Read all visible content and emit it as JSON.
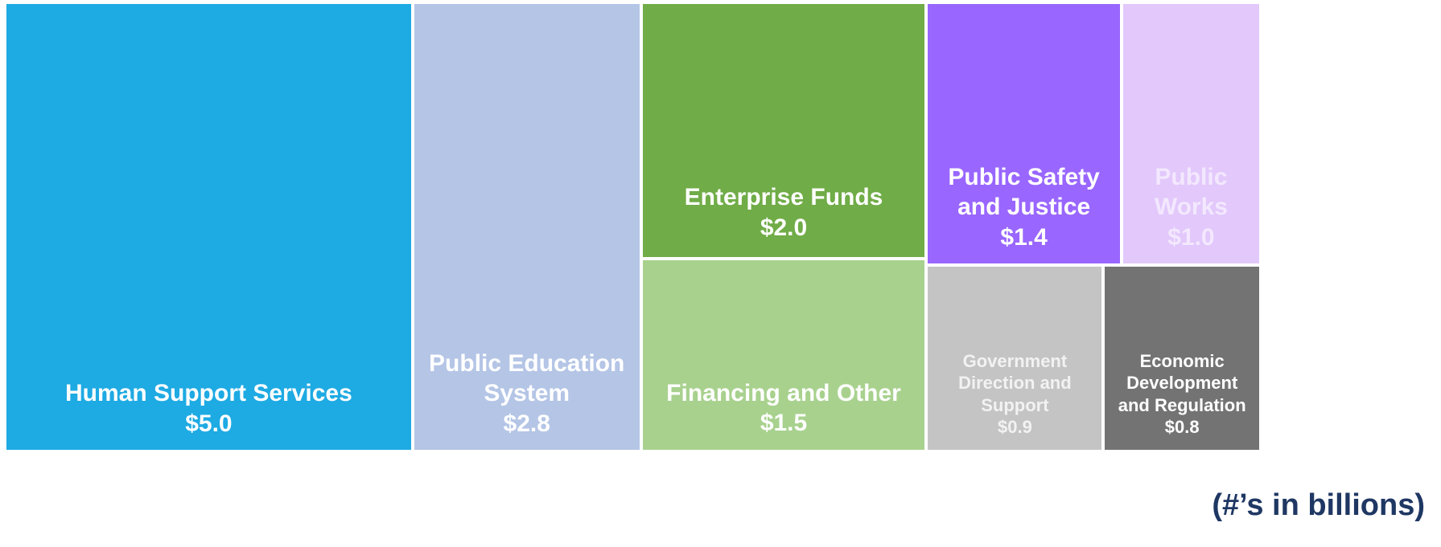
{
  "chart_data": {
    "type": "treemap",
    "categories": [
      "Human Support Services",
      "Public Education System",
      "Enterprise Funds",
      "Financing and Other",
      "Public Safety and Justice",
      "Public Works",
      "Government Direction and Support",
      "Economic Development and Regulation"
    ],
    "values": [
      5.0,
      2.8,
      2.0,
      1.5,
      1.4,
      1.0,
      0.9,
      0.8
    ],
    "value_labels": [
      "$5.0",
      "$2.8",
      "$2.0",
      "$1.5",
      "$1.4",
      "$1.0",
      "$0.9",
      "$0.8"
    ],
    "colors": [
      "#1eaae3",
      "#b4c5e6",
      "#70ac47",
      "#a8d18e",
      "#9966ff",
      "#e2c8fb",
      "#c4c4c4",
      "#737373"
    ],
    "note": "(#’s in billions)"
  }
}
